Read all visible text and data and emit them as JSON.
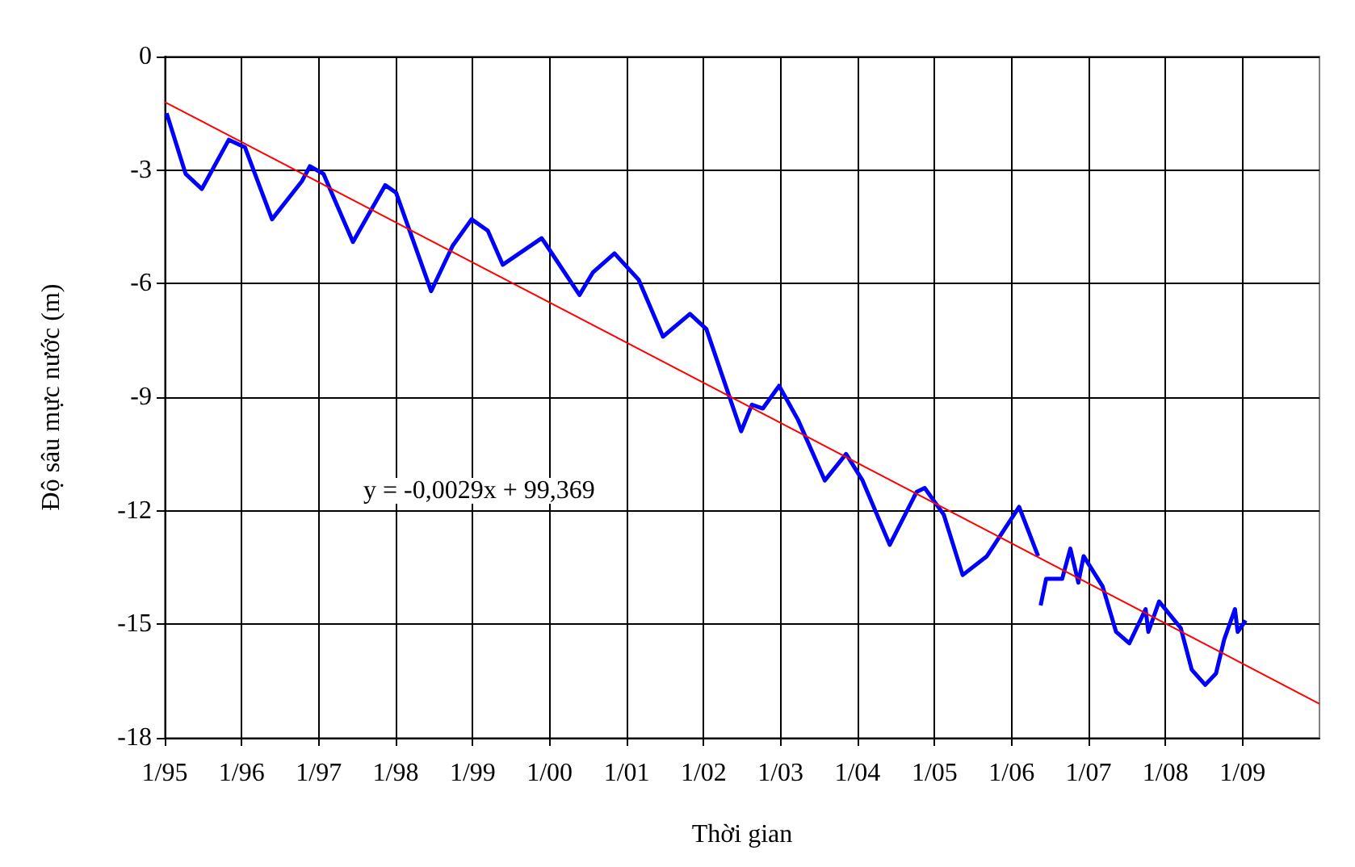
{
  "chart_data": {
    "type": "line",
    "xlabel": "Thời gian",
    "ylabel": "Độ sâu mực nước (m)",
    "annotations": [
      "y = -0,0029x + 99,369"
    ],
    "series": [
      {
        "color": "#0000ff",
        "x": [
          "1995-01-10",
          "1995-04-10",
          "1995-06-26",
          "1995-11-01",
          "1996-01-17",
          "1996-05-24",
          "1996-10-12",
          "1996-11-20",
          "1997-01-23",
          "1997-06-12",
          "1997-11-12",
          "1998-01-03",
          "1998-06-18",
          "1998-09-28",
          "1998-12-27",
          "1999-03-14",
          "1999-05-24",
          "1999-11-24",
          "1999-12-07",
          "2000-05-22",
          "2000-07-25",
          "2000-11-04",
          "2001-02-27",
          "2001-06-22",
          "2001-10-28",
          "2002-01-14",
          "2002-06-28",
          "2002-08-18",
          "2002-10-09",
          "2002-12-25",
          "2003-03-25",
          "2003-07-30",
          "2003-11-08",
          "2004-01-25",
          "2004-06-02",
          "2004-10-08",
          "2004-11-15",
          "2005-02-13",
          "2005-05-14",
          "2005-09-06",
          "2006-02-06",
          "2006-05-07",
          "2006-05-12",
          "2006-05-19",
          "2006-06-14",
          "2006-08-29",
          "2006-10-07",
          "2006-11-14",
          "2006-12-09",
          "2007-03-09",
          "2007-05-12",
          "2007-07-14",
          "2007-09-29",
          "2007-10-12",
          "2007-12-02",
          "2008-03-14",
          "2008-05-05",
          "2008-07-08",
          "2008-08-28",
          "2008-10-06",
          "2008-11-26",
          "2008-12-09",
          "2009-01-16"
        ],
        "values": [
          -1.5,
          -3.1,
          -3.5,
          -2.2,
          -2.4,
          -4.3,
          -3.3,
          -2.9,
          -3.1,
          -4.9,
          -3.4,
          -3.6,
          -6.2,
          -5.0,
          -4.3,
          -4.6,
          -5.5,
          -4.8,
          -4.9,
          -6.3,
          -5.7,
          -5.2,
          -5.9,
          -7.4,
          -6.8,
          -7.2,
          -9.9,
          -9.2,
          -9.3,
          -8.7,
          -9.6,
          -11.2,
          -10.5,
          -11.2,
          -12.9,
          -11.5,
          -11.4,
          -12.1,
          -13.7,
          -13.2,
          -11.9,
          -13.2,
          null,
          -14.5,
          -13.8,
          -13.8,
          -13.0,
          -13.9,
          -13.2,
          -14.0,
          -15.2,
          -15.5,
          -14.6,
          -15.2,
          -14.4,
          -15.1,
          -16.2,
          -16.6,
          -16.3,
          -15.4,
          -14.6,
          -15.2,
          -14.9
        ]
      },
      {
        "color": "#ff0000",
        "x": [
          "1995-01-01",
          "2010-01-01"
        ],
        "values": [
          -1.2,
          -17.1
        ]
      }
    ],
    "xlim": [
      "1995-01-01",
      "2010-01-01"
    ],
    "xticks": [
      {
        "value": "1995-01-01",
        "label": "1/95"
      },
      {
        "value": "1996-01-01",
        "label": "1/96"
      },
      {
        "value": "1997-01-01",
        "label": "1/97"
      },
      {
        "value": "1998-01-01",
        "label": "1/98"
      },
      {
        "value": "1999-01-01",
        "label": "1/99"
      },
      {
        "value": "2000-01-01",
        "label": "1/00"
      },
      {
        "value": "2001-01-01",
        "label": "1/01"
      },
      {
        "value": "2002-01-01",
        "label": "1/02"
      },
      {
        "value": "2003-01-01",
        "label": "1/03"
      },
      {
        "value": "2004-01-01",
        "label": "1/04"
      },
      {
        "value": "2005-01-01",
        "label": "1/05"
      },
      {
        "value": "2006-01-01",
        "label": "1/06"
      },
      {
        "value": "2007-01-01",
        "label": "1/07"
      },
      {
        "value": "2008-01-01",
        "label": "1/08"
      },
      {
        "value": "2009-01-01",
        "label": "1/09"
      }
    ],
    "ylim": [
      -18,
      0
    ],
    "yticks": [
      0,
      -3,
      -6,
      -9,
      -12,
      -15,
      -18
    ],
    "grid": true,
    "marker": "none",
    "line_style": "solid"
  }
}
